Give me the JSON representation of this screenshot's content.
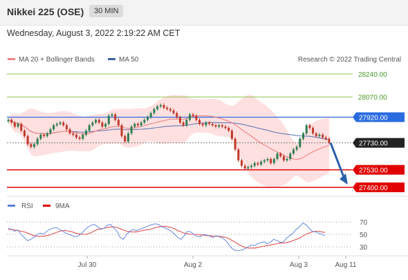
{
  "header": {
    "title": "Nikkei 225 (OSE)",
    "interval": "30 MIN"
  },
  "timestamp": "Wednesday, August 3, 2022 2:19:22 AM CET",
  "legend": {
    "ma20": "MA 20 + Bollinger Bands",
    "ma50": "MA 50",
    "credit": "Research © 2022 Trading Central"
  },
  "rsi_legend": {
    "rsi": "RSI",
    "ma9": "9MA"
  },
  "colors": {
    "ma20": "#f08080",
    "ma50": "#3a5fa8",
    "band": "#ffd5d5",
    "up": "#2e7d4f",
    "down": "#c0392b",
    "resistance": "#8bc34a",
    "support": "#e00000",
    "pivot": "#2a6be0",
    "current": "#222222",
    "arrow": "#2a5fa8"
  },
  "chart_data": [
    {
      "type": "candlestick",
      "x_ticks": [
        "Jul 30",
        "Aug 2",
        "Aug 3",
        "Aug 11"
      ],
      "levels": [
        {
          "value": 28240.0,
          "label": "28240.00",
          "kind": "resistance"
        },
        {
          "value": 28070.0,
          "label": "28070.00",
          "kind": "resistance"
        },
        {
          "value": 27920.0,
          "label": "27920.00",
          "kind": "pivot"
        },
        {
          "value": 27730.0,
          "label": "27730.00",
          "kind": "current"
        },
        {
          "value": 27530.0,
          "label": "27530.00",
          "kind": "support"
        },
        {
          "value": 27400.0,
          "label": "27400.00",
          "kind": "support"
        }
      ],
      "ylim": [
        27350,
        28300
      ],
      "close": [
        27900,
        27880,
        27850,
        27870,
        27820,
        27780,
        27720,
        27700,
        27720,
        27760,
        27790,
        27780,
        27800,
        27830,
        27860,
        27870,
        27880,
        27860,
        27830,
        27800,
        27790,
        27770,
        27760,
        27790,
        27820,
        27860,
        27880,
        27900,
        27880,
        27850,
        27870,
        27930,
        27940,
        27900,
        27860,
        27780,
        27740,
        27800,
        27850,
        27870,
        27860,
        27880,
        27900,
        27920,
        27950,
        27980,
        28000,
        28010,
        27990,
        27980,
        27970,
        27950,
        27920,
        27880,
        27860,
        27900,
        27940,
        27930,
        27900,
        27870,
        27860,
        27880,
        27870,
        27860,
        27850,
        27860,
        27850,
        27840,
        27820,
        27760,
        27680,
        27600,
        27560,
        27540,
        27550,
        27560,
        27580,
        27570,
        27590,
        27600,
        27610,
        27580,
        27610,
        27650,
        27630,
        27600,
        27610,
        27650,
        27680,
        27700,
        27760,
        27800,
        27860,
        27840,
        27800,
        27780,
        27790,
        27770,
        27760,
        27730
      ]
    },
    {
      "type": "line",
      "title": "RSI",
      "yticks": [
        30,
        50,
        70
      ],
      "ylim": [
        20,
        80
      ],
      "series": [
        {
          "name": "RSI",
          "values": [
            60,
            58,
            55,
            57,
            50,
            45,
            40,
            42,
            45,
            50,
            52,
            50,
            55,
            58,
            60,
            61,
            58,
            55,
            52,
            50,
            48,
            46,
            48,
            52,
            58,
            62,
            65,
            66,
            62,
            58,
            60,
            65,
            66,
            60,
            55,
            45,
            42,
            50,
            55,
            58,
            56,
            58,
            60,
            62,
            64,
            66,
            67,
            66,
            62,
            60,
            58,
            55,
            50,
            45,
            42,
            48,
            55,
            54,
            50,
            47,
            46,
            50,
            49,
            47,
            45,
            48,
            46,
            44,
            40,
            33,
            27,
            24,
            24,
            25,
            27,
            30,
            33,
            32,
            35,
            37,
            38,
            35,
            38,
            42,
            40,
            37,
            38,
            44,
            48,
            52,
            58,
            62,
            68,
            66,
            60,
            55,
            54,
            52,
            50,
            48
          ]
        },
        {
          "name": "9MA",
          "values": [
            58,
            58,
            57,
            56,
            55,
            54,
            52,
            50,
            48,
            47,
            47,
            47,
            48,
            49,
            51,
            53,
            55,
            56,
            56,
            55,
            54,
            52,
            51,
            50,
            50,
            51,
            53,
            56,
            58,
            59,
            60,
            61,
            62,
            62,
            61,
            59,
            57,
            55,
            54,
            54,
            54,
            55,
            56,
            57,
            58,
            59,
            61,
            62,
            63,
            63,
            62,
            61,
            59,
            56,
            54,
            52,
            51,
            50,
            50,
            50,
            49,
            49,
            48,
            48,
            47,
            47,
            47,
            46,
            45,
            43,
            40,
            37,
            34,
            31,
            29,
            28,
            28,
            28,
            29,
            30,
            31,
            32,
            33,
            34,
            35,
            36,
            36,
            37,
            38,
            40,
            42,
            44,
            47,
            50,
            52,
            54,
            55,
            55,
            54,
            53
          ]
        }
      ]
    }
  ]
}
